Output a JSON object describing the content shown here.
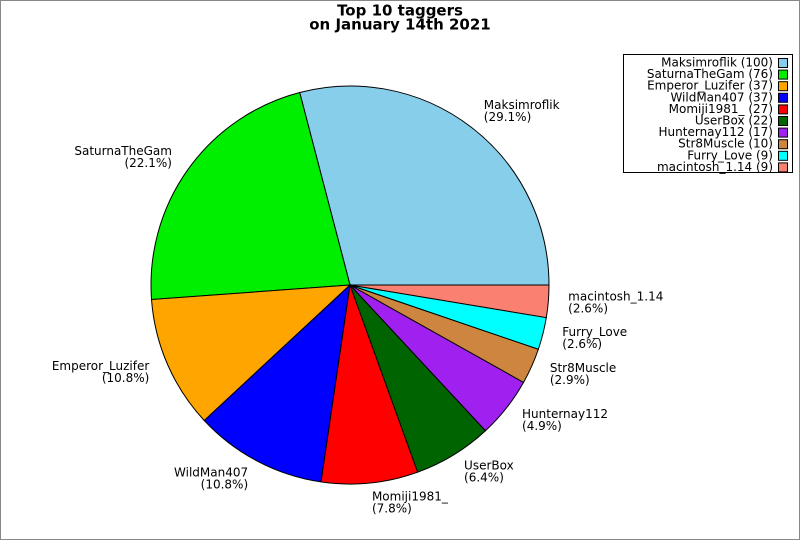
{
  "chart_data": {
    "type": "pie",
    "title": "Top 10 taggers",
    "subtitle": "on January 14th 2021",
    "categories": [
      "Maksimroflik",
      "SaturnaTheGam",
      "Emperor_Luzifer",
      "WildMan407",
      "Momiji1981_",
      "UserBox",
      "Hunternay112",
      "Str8Muscle",
      "Furry_Love",
      "macintosh_1.14"
    ],
    "values": [
      100,
      76,
      37,
      37,
      27,
      22,
      17,
      10,
      9,
      9
    ],
    "value_labels": [
      "(29.1%)",
      "(22.1%)",
      "(10.8%)",
      "(10.8%)",
      "(7.8%)",
      "(6.4%)",
      "(4.9%)",
      "(2.9%)",
      "(2.6%)",
      "(2.6%)"
    ],
    "legend_labels": [
      "Maksimroflik (100)",
      "SaturnaTheGam (76)",
      "Emperor_Luzifer (37)",
      "WildMan407 (37)",
      "Momiji1981_ (27)",
      "UserBox (22)",
      "Hunternay112 (17)",
      "Str8Muscle (10)",
      "Furry_Love (9)",
      "macintosh_1.14 (9)"
    ],
    "colors": [
      "#87ceeb",
      "#00ee00",
      "#ffa500",
      "#0000ff",
      "#ff0000",
      "#006400",
      "#a020f0",
      "#cd853f",
      "#00ffff",
      "#fa8072"
    ],
    "legend": "upper right"
  }
}
